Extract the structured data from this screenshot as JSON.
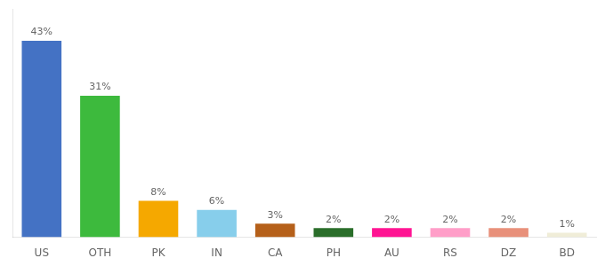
{
  "chart_data": {
    "type": "bar",
    "categories": [
      "US",
      "OTH",
      "PK",
      "IN",
      "CA",
      "PH",
      "AU",
      "RS",
      "DZ",
      "BD"
    ],
    "values": [
      43,
      31,
      8,
      6,
      3,
      2,
      2,
      2,
      2,
      1
    ],
    "value_labels": [
      "43%",
      "31%",
      "8%",
      "6%",
      "3%",
      "2%",
      "2%",
      "2%",
      "2%",
      "1%"
    ],
    "colors": [
      "#4472c4",
      "#3dba3d",
      "#f5a800",
      "#87ceeb",
      "#b5601a",
      "#2a6e2a",
      "#ff1493",
      "#ff9ec8",
      "#e8907a",
      "#f0edd8"
    ],
    "ylim": [
      0,
      50
    ],
    "data_labels": true,
    "tick_labels": "x",
    "grid": false
  }
}
